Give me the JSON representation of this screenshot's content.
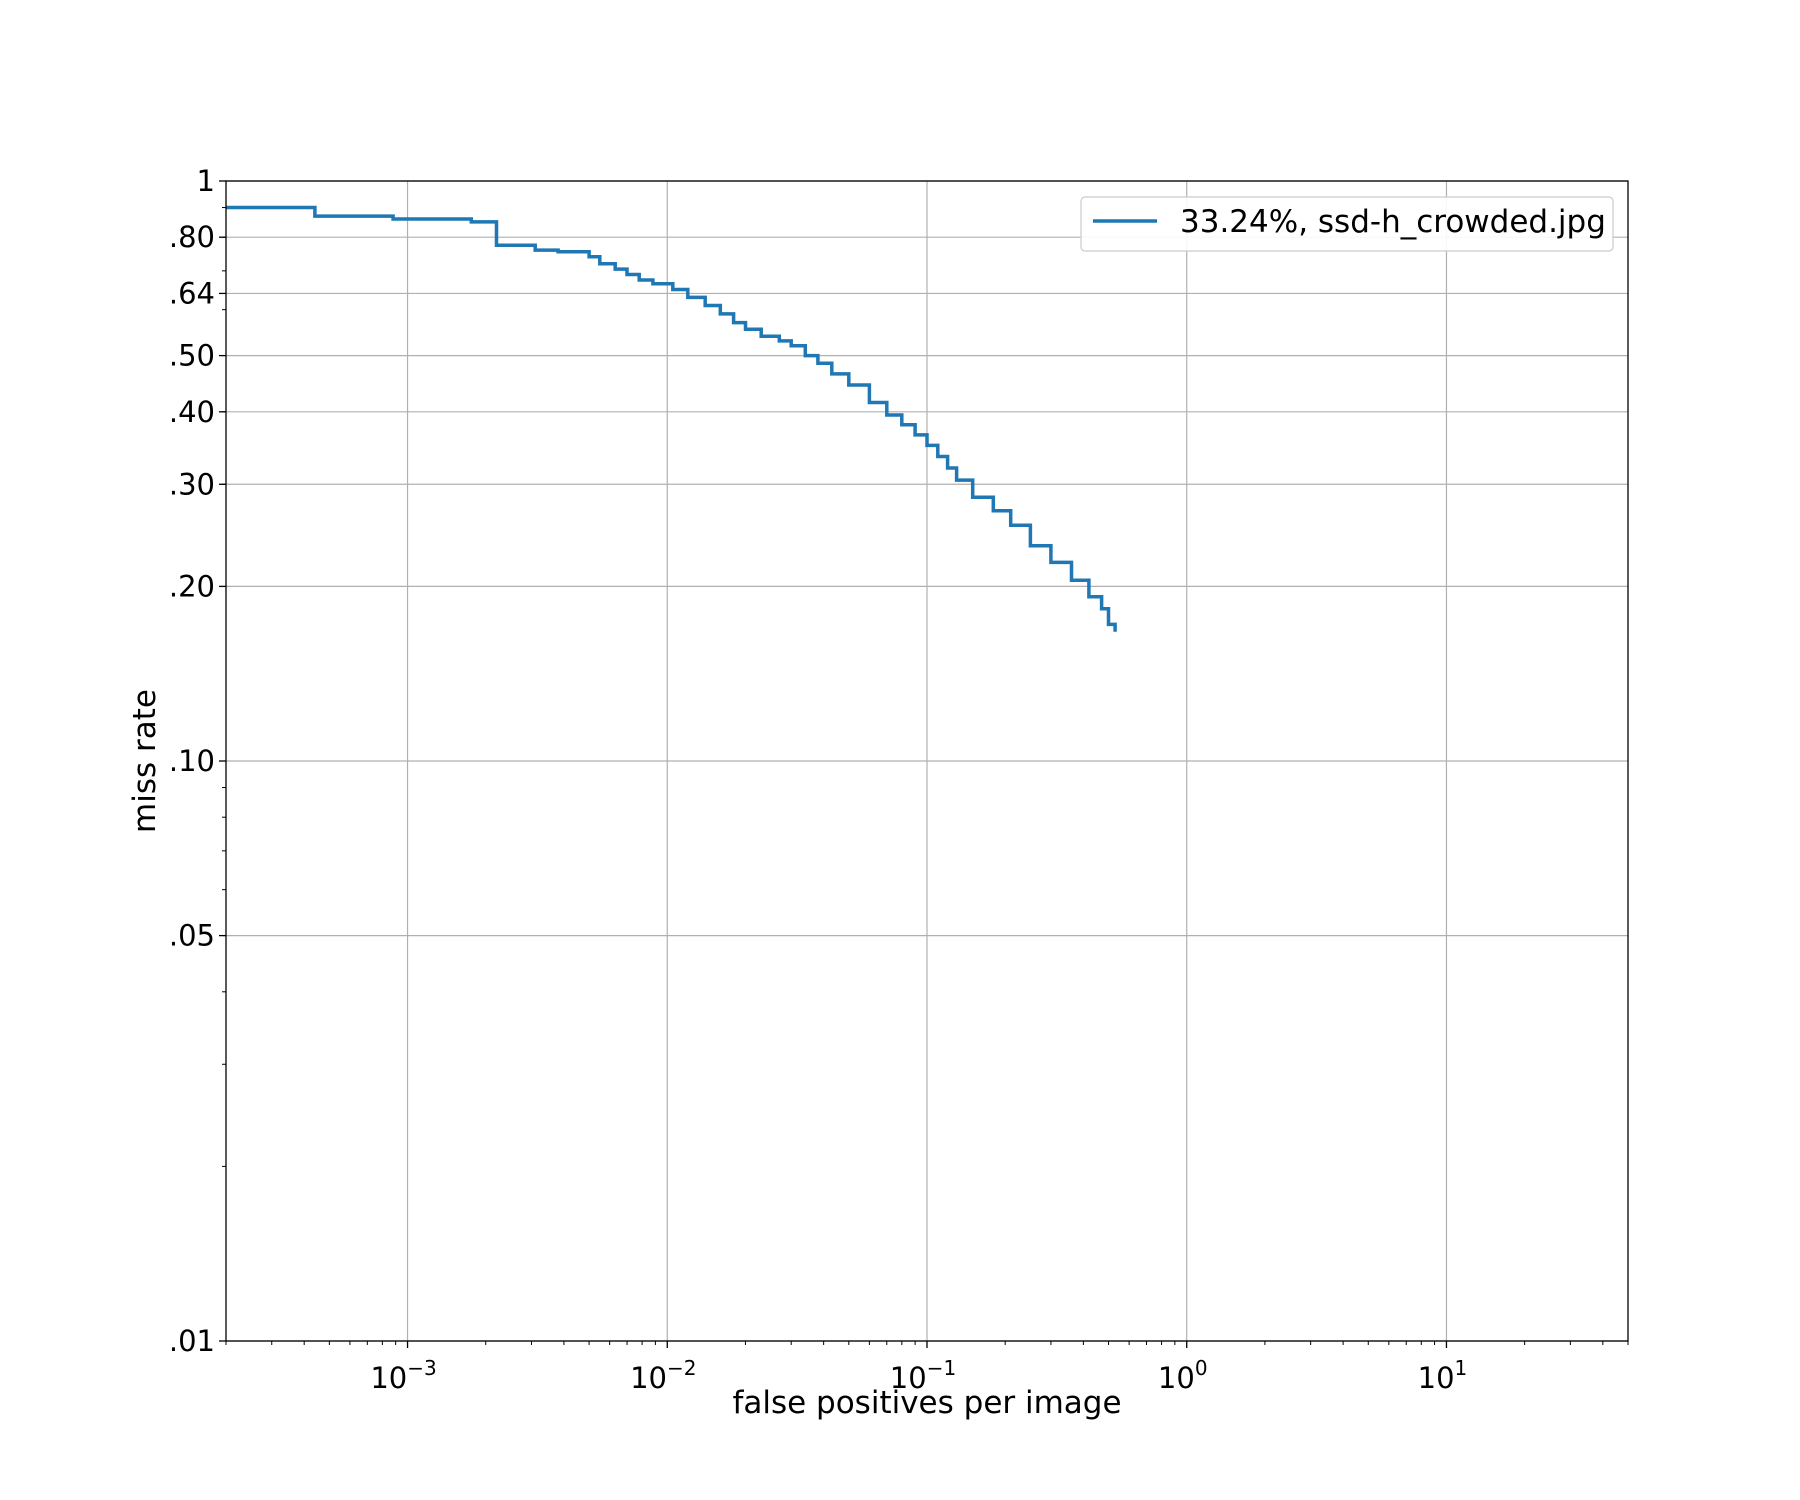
{
  "chart_data": {
    "type": "line",
    "title": "",
    "xlabel": "false positives per image",
    "ylabel": "miss rate",
    "xscale": "log",
    "yscale": "log",
    "xlim": [
      0.0002,
      50
    ],
    "ylim": [
      0.01,
      1
    ],
    "grid": true,
    "legend_position": "top-right",
    "x_ticks": [
      {
        "value": 0.001,
        "base": "10",
        "exp": "−3"
      },
      {
        "value": 0.01,
        "base": "10",
        "exp": "−2"
      },
      {
        "value": 0.1,
        "base": "10",
        "exp": "−1"
      },
      {
        "value": 1,
        "base": "10",
        "exp": "0"
      },
      {
        "value": 10,
        "base": "10",
        "exp": "1"
      }
    ],
    "y_ticks": [
      {
        "value": 1,
        "label": "1"
      },
      {
        "value": 0.8,
        "label": ".80"
      },
      {
        "value": 0.64,
        "label": ".64"
      },
      {
        "value": 0.5,
        "label": ".50"
      },
      {
        "value": 0.4,
        "label": ".40"
      },
      {
        "value": 0.3,
        "label": ".30"
      },
      {
        "value": 0.2,
        "label": ".20"
      },
      {
        "value": 0.1,
        "label": ".10"
      },
      {
        "value": 0.05,
        "label": ".05"
      },
      {
        "value": 0.01,
        "label": ".01"
      }
    ],
    "series": [
      {
        "name": "33.24%, ssd-h_crowded.jpg",
        "color": "#1f77b4",
        "step": true,
        "x": [
          0.0002,
          0.00044,
          0.00088,
          0.00176,
          0.0022,
          0.0031,
          0.0038,
          0.005,
          0.0055,
          0.0063,
          0.007,
          0.0078,
          0.0088,
          0.0105,
          0.012,
          0.014,
          0.016,
          0.018,
          0.02,
          0.023,
          0.027,
          0.03,
          0.034,
          0.038,
          0.043,
          0.05,
          0.06,
          0.07,
          0.08,
          0.09,
          0.1,
          0.11,
          0.12,
          0.13,
          0.15,
          0.18,
          0.21,
          0.25,
          0.3,
          0.36,
          0.42,
          0.47,
          0.5,
          0.53
        ],
        "y": [
          0.9,
          0.87,
          0.86,
          0.85,
          0.775,
          0.76,
          0.755,
          0.74,
          0.72,
          0.705,
          0.69,
          0.675,
          0.665,
          0.65,
          0.63,
          0.61,
          0.59,
          0.57,
          0.555,
          0.54,
          0.53,
          0.52,
          0.5,
          0.485,
          0.465,
          0.445,
          0.415,
          0.395,
          0.38,
          0.365,
          0.35,
          0.335,
          0.32,
          0.305,
          0.285,
          0.27,
          0.255,
          0.235,
          0.22,
          0.205,
          0.192,
          0.183,
          0.172,
          0.167
        ]
      }
    ]
  }
}
